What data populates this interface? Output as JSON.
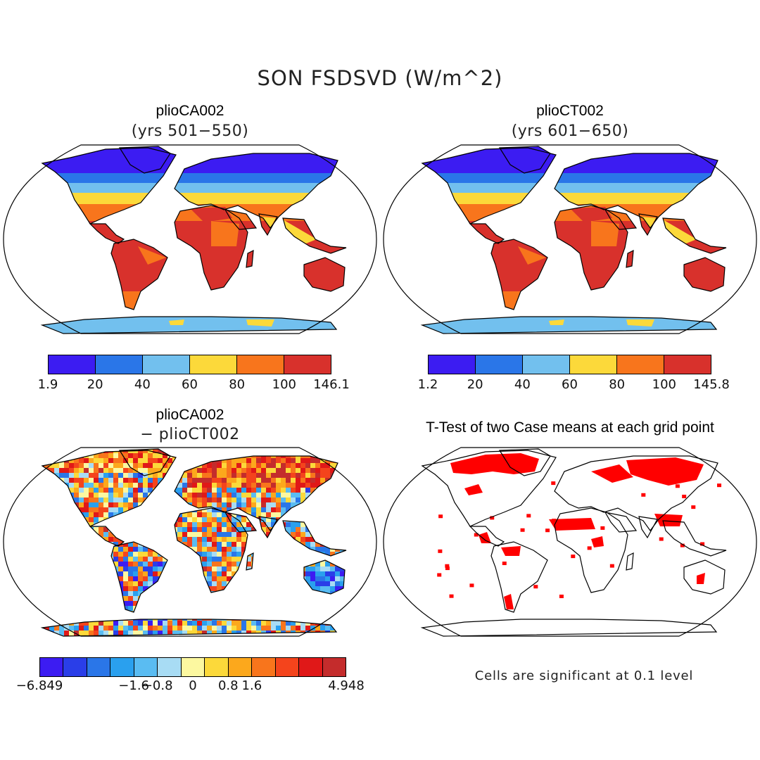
{
  "figure": {
    "title": "SON FSDSVD (W/m^2)",
    "panels": [
      {
        "id": "caseA",
        "title": "plioCA002",
        "subtitle": "(yrs 501−550)",
        "colorbar": {
          "colors": [
            "#3c1cf2",
            "#2a76e8",
            "#72c0ee",
            "#fcd93a",
            "#f8751c",
            "#d8312c"
          ],
          "labels": [
            "1.9",
            "20",
            "40",
            "60",
            "80",
            "100",
            "146.1"
          ]
        }
      },
      {
        "id": "caseB",
        "title": "plioCT002",
        "subtitle": "(yrs 601−650)",
        "colorbar": {
          "colors": [
            "#3c1cf2",
            "#2a76e8",
            "#72c0ee",
            "#fcd93a",
            "#f8751c",
            "#d8312c"
          ],
          "labels": [
            "1.2",
            "20",
            "40",
            "60",
            "80",
            "100",
            "145.8"
          ]
        }
      },
      {
        "id": "diff",
        "title": "plioCA002",
        "subtitle": "− plioCT002",
        "colorbar": {
          "colors": [
            "#3c1cf2",
            "#2a3ee8",
            "#2a76e8",
            "#2aa0ee",
            "#5abcf2",
            "#a8dcf4",
            "#fcf8a0",
            "#fcd93a",
            "#fca81c",
            "#f8751c",
            "#f4441c",
            "#e01818",
            "#c42c2c"
          ],
          "labels": [
            "−6.849",
            "−1.6",
            "−0.8",
            "0",
            "0.8",
            "1.6",
            "4.948"
          ]
        }
      },
      {
        "id": "ttest",
        "title": "T-Test of two Case means at each grid point",
        "note": "Cells are significant at 0.1 level",
        "sig_color": "#ff0000"
      }
    ]
  }
}
